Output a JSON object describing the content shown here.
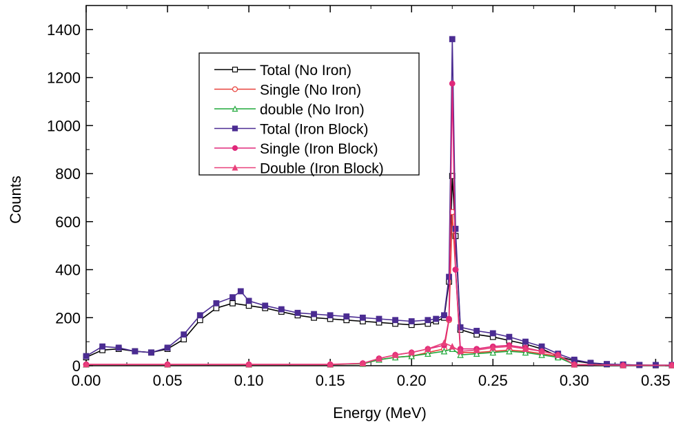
{
  "chart_data": {
    "type": "line",
    "title": "",
    "xlabel": "Energy (MeV)",
    "ylabel": "Counts",
    "xlim": [
      0.0,
      0.36
    ],
    "ylim": [
      0,
      1500
    ],
    "x_ticks": [
      "0.00",
      "0.05",
      "0.10",
      "0.15",
      "0.20",
      "0.25",
      "0.30",
      "0.35"
    ],
    "y_ticks": [
      "0",
      "200",
      "400",
      "600",
      "800",
      "1000",
      "1200",
      "1400"
    ],
    "grid": false,
    "legend_position": "top-left inside",
    "series": [
      {
        "name": "Total (No Iron)",
        "color": "#000000",
        "marker": "open-square",
        "x": [
          0.0,
          0.01,
          0.02,
          0.03,
          0.04,
          0.05,
          0.06,
          0.07,
          0.08,
          0.09,
          0.1,
          0.11,
          0.12,
          0.13,
          0.14,
          0.15,
          0.16,
          0.17,
          0.18,
          0.19,
          0.2,
          0.21,
          0.215,
          0.22,
          0.223,
          0.225,
          0.227,
          0.23,
          0.24,
          0.25,
          0.26,
          0.27,
          0.28,
          0.29,
          0.3,
          0.31,
          0.32,
          0.33,
          0.34,
          0.35,
          0.36
        ],
        "y": [
          35,
          65,
          70,
          60,
          55,
          70,
          110,
          190,
          240,
          260,
          250,
          240,
          225,
          210,
          200,
          195,
          190,
          185,
          180,
          175,
          170,
          175,
          185,
          200,
          350,
          790,
          540,
          150,
          130,
          120,
          105,
          90,
          70,
          40,
          20,
          10,
          6,
          4,
          3,
          2,
          2
        ]
      },
      {
        "name": "Single (No Iron)",
        "color": "#e8403a",
        "marker": "open-circle",
        "x": [
          0.0,
          0.05,
          0.1,
          0.15,
          0.17,
          0.18,
          0.19,
          0.2,
          0.21,
          0.22,
          0.223,
          0.225,
          0.227,
          0.23,
          0.24,
          0.25,
          0.26,
          0.27,
          0.28,
          0.29,
          0.3,
          0.33,
          0.36
        ],
        "y": [
          5,
          5,
          5,
          5,
          8,
          25,
          35,
          40,
          55,
          70,
          190,
          640,
          400,
          55,
          55,
          60,
          65,
          60,
          50,
          40,
          5,
          2,
          2
        ]
      },
      {
        "name": "double (No Iron)",
        "color": "#1fa83a",
        "marker": "open-triangle",
        "x": [
          0.0,
          0.05,
          0.1,
          0.15,
          0.17,
          0.18,
          0.19,
          0.2,
          0.21,
          0.22,
          0.225,
          0.23,
          0.24,
          0.25,
          0.26,
          0.27,
          0.28,
          0.29,
          0.3,
          0.33,
          0.36
        ],
        "y": [
          5,
          5,
          5,
          5,
          8,
          25,
          35,
          40,
          50,
          60,
          70,
          45,
          50,
          55,
          60,
          55,
          45,
          35,
          5,
          2,
          2
        ]
      },
      {
        "name": "Total (Iron Block)",
        "color": "#4b2c92",
        "marker": "filled-square",
        "x": [
          0.0,
          0.01,
          0.02,
          0.03,
          0.04,
          0.05,
          0.06,
          0.07,
          0.08,
          0.09,
          0.095,
          0.1,
          0.11,
          0.12,
          0.13,
          0.14,
          0.15,
          0.16,
          0.17,
          0.18,
          0.19,
          0.2,
          0.21,
          0.215,
          0.22,
          0.223,
          0.225,
          0.227,
          0.23,
          0.24,
          0.25,
          0.26,
          0.27,
          0.28,
          0.29,
          0.3,
          0.31,
          0.32,
          0.33,
          0.34,
          0.35,
          0.36
        ],
        "y": [
          40,
          80,
          75,
          60,
          55,
          75,
          130,
          210,
          260,
          285,
          310,
          270,
          250,
          235,
          220,
          215,
          210,
          205,
          200,
          195,
          190,
          185,
          190,
          195,
          210,
          370,
          1360,
          570,
          160,
          145,
          135,
          120,
          100,
          80,
          50,
          25,
          12,
          7,
          5,
          3,
          3,
          3
        ]
      },
      {
        "name": "Single (Iron Block)",
        "color": "#e0287a",
        "marker": "filled-circle",
        "x": [
          0.0,
          0.05,
          0.1,
          0.15,
          0.17,
          0.18,
          0.19,
          0.2,
          0.21,
          0.22,
          0.223,
          0.225,
          0.227,
          0.23,
          0.24,
          0.25,
          0.26,
          0.27,
          0.28,
          0.29,
          0.3,
          0.33,
          0.36
        ],
        "y": [
          5,
          5,
          5,
          5,
          10,
          30,
          45,
          55,
          70,
          85,
          195,
          1175,
          400,
          70,
          70,
          80,
          85,
          75,
          60,
          45,
          5,
          2,
          2
        ]
      },
      {
        "name": "Double (Iron Block)",
        "color": "#e8407a",
        "marker": "filled-triangle",
        "x": [
          0.0,
          0.05,
          0.1,
          0.15,
          0.17,
          0.18,
          0.19,
          0.2,
          0.21,
          0.22,
          0.225,
          0.23,
          0.24,
          0.25,
          0.26,
          0.27,
          0.28,
          0.29,
          0.3,
          0.33,
          0.36
        ],
        "y": [
          6,
          6,
          6,
          6,
          10,
          30,
          45,
          55,
          70,
          95,
          80,
          60,
          65,
          75,
          80,
          70,
          60,
          45,
          5,
          2,
          2
        ]
      }
    ]
  }
}
